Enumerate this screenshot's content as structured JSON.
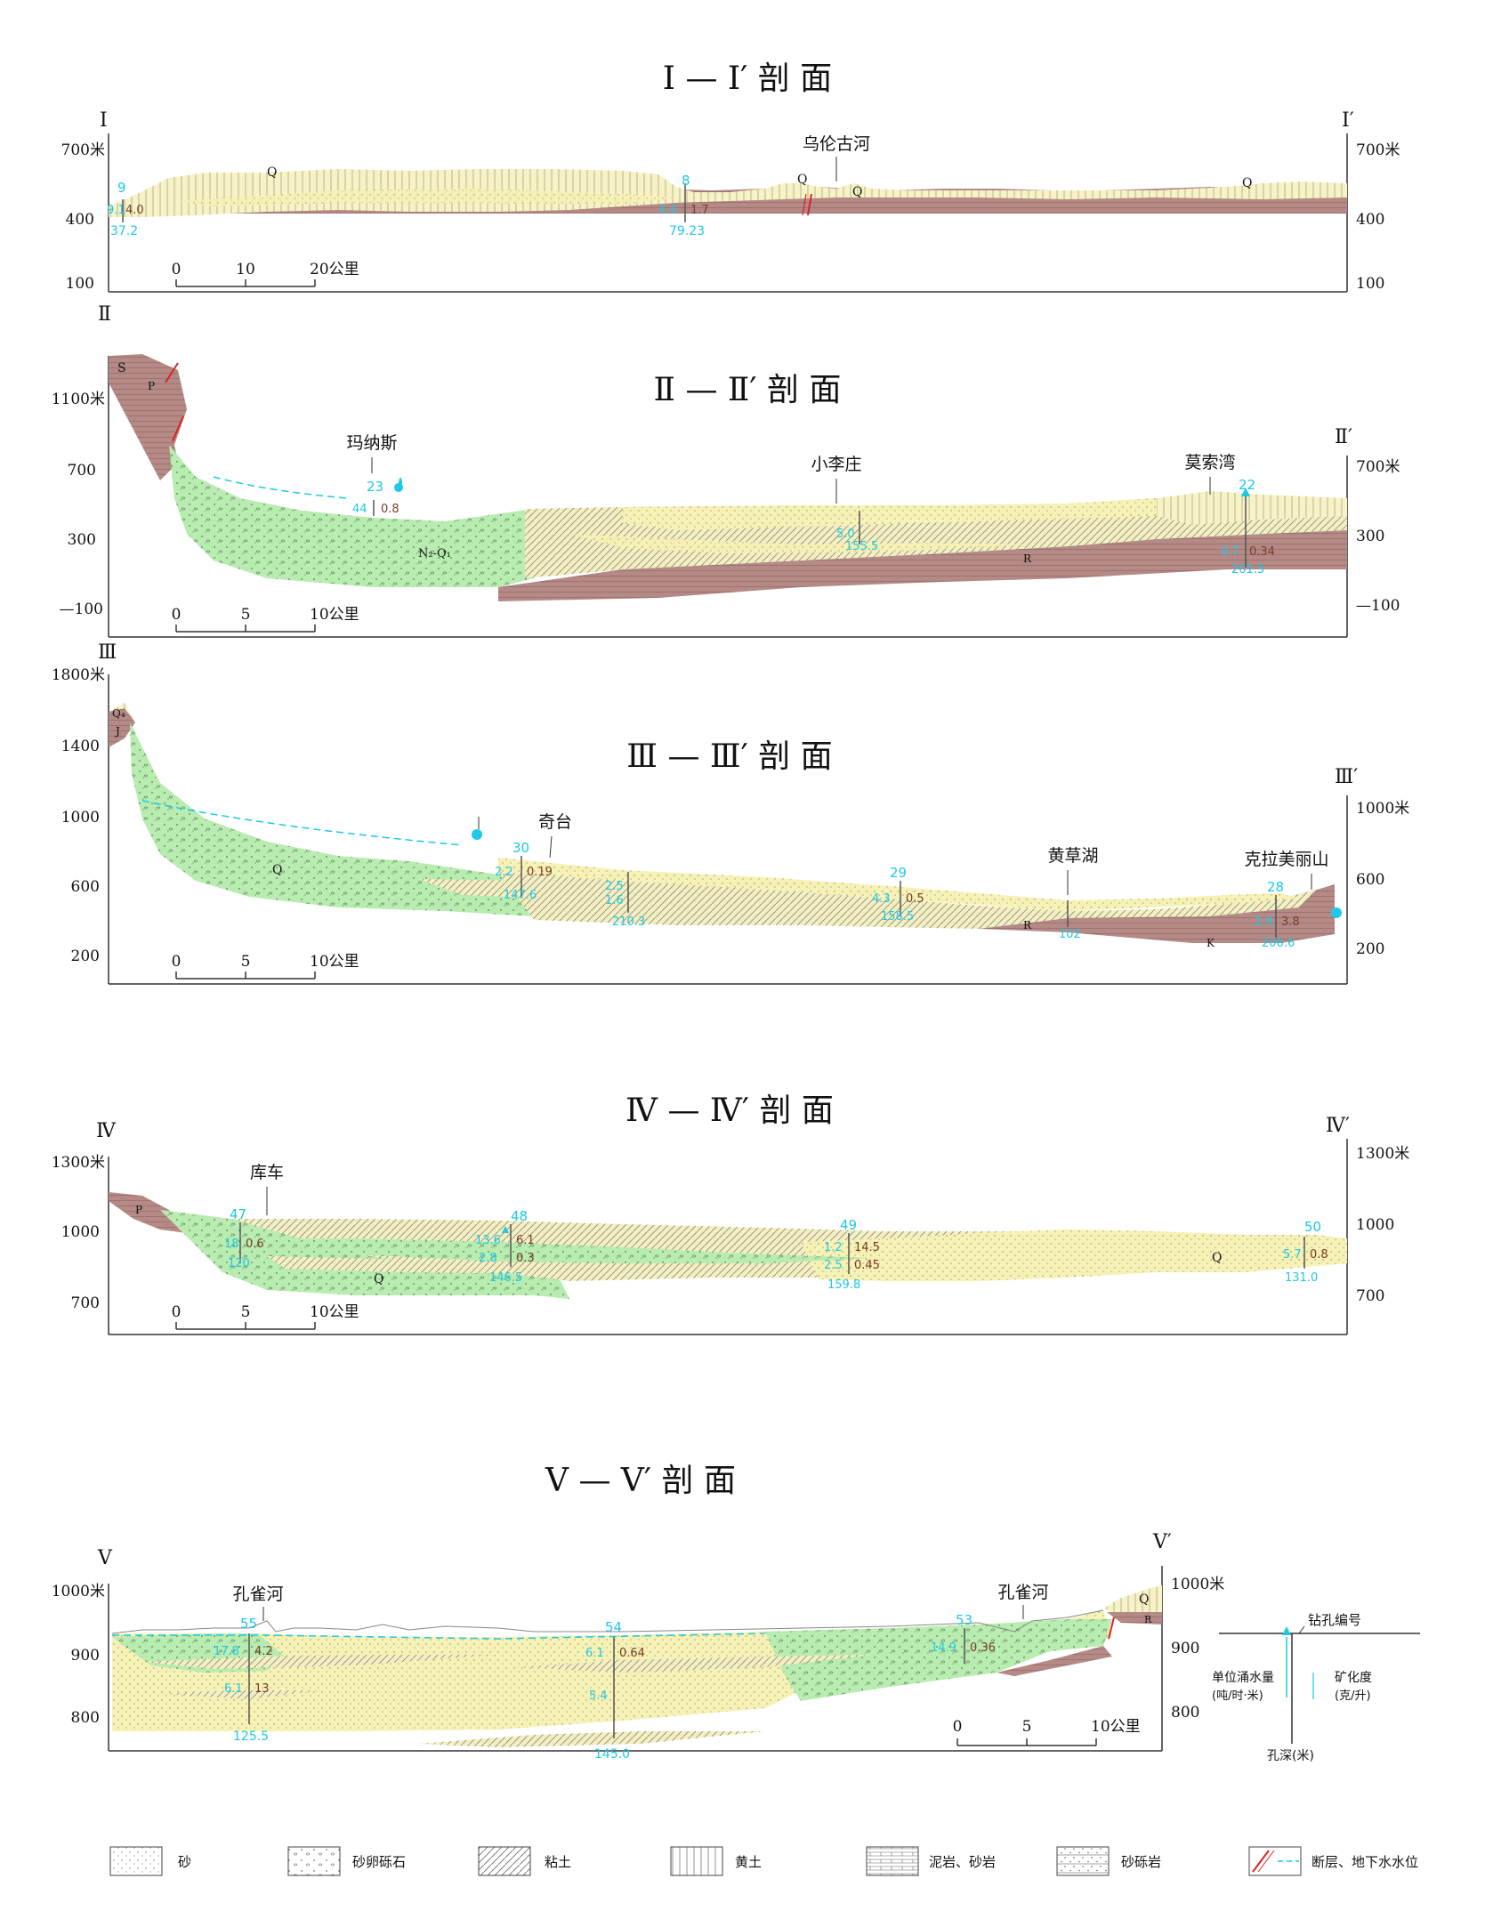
{
  "colors": {
    "sand": "#f6f1b4",
    "gravel": "#b8ecb0",
    "clay_rock": "#b58a86",
    "loess": "#f7f3c6",
    "water_number": "#1ec8e6",
    "salinity": "#7a3a28"
  },
  "sections": [
    {
      "title": "Ⅰ — Ⅰ′ 剖 面",
      "left_mark": "Ⅰ",
      "right_mark": "Ⅰ′",
      "left_axis": [
        "700米",
        "400",
        "100"
      ],
      "right_axis": [
        "700米",
        "400",
        "100"
      ],
      "scale": [
        "0",
        "10",
        "20公里"
      ],
      "places": [
        "乌伦古河"
      ],
      "layer_labels": [
        "Q",
        "Q",
        "Q",
        "Q"
      ],
      "wells": [
        {
          "id": "9",
          "yield": "9.1",
          "salinity": "4.0",
          "depth": "37.2"
        },
        {
          "id": "8",
          "yield": "4.4",
          "salinity": "1.7",
          "depth": "79.23"
        }
      ]
    },
    {
      "title": "Ⅱ — Ⅱ′ 剖 面",
      "left_mark": "Ⅱ",
      "right_mark": "Ⅱ′",
      "left_axis": [
        "1100米",
        "700",
        "300",
        "—100"
      ],
      "right_axis": [
        "700米",
        "300",
        "—100"
      ],
      "scale": [
        "0",
        "5",
        "10公里"
      ],
      "places": [
        "玛纳斯",
        "小李庄",
        "莫索湾"
      ],
      "layer_labels": [
        "S",
        "P",
        "N₂-Q₁",
        "R"
      ],
      "wells": [
        {
          "id": "23",
          "yield": "44",
          "salinity": "0.8",
          "depth": ""
        },
        {
          "id": "",
          "yield": "5.0",
          "salinity": "",
          "depth": "155.5"
        },
        {
          "id": "22",
          "yield": "0.7",
          "salinity": "0.34",
          "depth": "201.5"
        }
      ]
    },
    {
      "title": "Ⅲ — Ⅲ′ 剖 面",
      "left_mark": "Ⅲ",
      "right_mark": "Ⅲ′",
      "left_axis": [
        "1800米",
        "1400",
        "1000",
        "600",
        "200"
      ],
      "right_axis": [
        "1000米",
        "600",
        "200"
      ],
      "scale": [
        "0",
        "5",
        "10公里"
      ],
      "places": [
        "奇台",
        "黄草湖",
        "克拉美丽山"
      ],
      "layer_labels": [
        "Q₄",
        "J",
        "Q",
        "R",
        "K"
      ],
      "wells": [
        {
          "id": "30",
          "yield": "2.2",
          "salinity": "0.19",
          "depth": "147.6"
        },
        {
          "id": "",
          "yield": "2.5",
          "salinity": "1.6",
          "depth": "210.3"
        },
        {
          "id": "29",
          "yield": "4.3",
          "salinity": "0.5",
          "depth": "158.5"
        },
        {
          "id": "",
          "yield": "",
          "salinity": "",
          "depth": "102"
        },
        {
          "id": "28",
          "yield": "2.9",
          "salinity": "3.8",
          "depth": "206.6"
        }
      ]
    },
    {
      "title": "Ⅳ — Ⅳ′ 剖 面",
      "left_mark": "Ⅳ",
      "right_mark": "Ⅳ′",
      "left_axis": [
        "1300米",
        "1000",
        "700"
      ],
      "right_axis": [
        "1300米",
        "1000",
        "700"
      ],
      "scale": [
        "0",
        "5",
        "10公里"
      ],
      "places": [
        "库车"
      ],
      "layer_labels": [
        "P",
        "Q",
        "Q"
      ],
      "wells": [
        {
          "id": "47",
          "yield": "18",
          "salinity": "0.6",
          "depth": "120"
        },
        {
          "id": "48",
          "yield": "13.6",
          "salinity": "6.1",
          "depth": "146.5"
        },
        {
          "id": "",
          "yield": "2.8",
          "salinity": "0.3",
          "depth": ""
        },
        {
          "id": "49",
          "yield": "1.2",
          "salinity": "14.5",
          "depth": "159.8"
        },
        {
          "id": "",
          "yield": "2.5",
          "salinity": "0.45",
          "depth": ""
        },
        {
          "id": "50",
          "yield": "5.7",
          "salinity": "0.8",
          "depth": "131.0"
        }
      ]
    },
    {
      "title": "Ⅴ — Ⅴ′ 剖 面",
      "left_mark": "Ⅴ",
      "right_mark": "Ⅴ′",
      "left_axis": [
        "1000米",
        "900",
        "800"
      ],
      "right_axis": [
        "1000米",
        "900",
        "800"
      ],
      "scale": [
        "0",
        "5",
        "10公里"
      ],
      "places": [
        "孔雀河",
        "孔雀河"
      ],
      "layer_labels": [
        "Q",
        "R"
      ],
      "wells": [
        {
          "id": "55",
          "yield": "17.8",
          "salinity": "4.2",
          "depth": "125.5"
        },
        {
          "id": "",
          "yield": "6.1",
          "salinity": "13",
          "depth": ""
        },
        {
          "id": "54",
          "yield": "6.1",
          "salinity": "0.64",
          "depth": "145.0"
        },
        {
          "id": "",
          "yield": "5.4",
          "salinity": "",
          "depth": ""
        },
        {
          "id": "53",
          "yield": "14.9",
          "salinity": "0.36",
          "depth": ""
        }
      ]
    }
  ],
  "well_key": {
    "id_label": "钻孔编号",
    "yield_label": "单位涌水量",
    "yield_unit": "(吨/时·米)",
    "salinity_label": "矿化度",
    "salinity_unit": "(克/升)",
    "depth_label": "孔深(米)"
  },
  "legend": [
    {
      "label": "砂",
      "pattern": "sand"
    },
    {
      "label": "砂卵砾石",
      "pattern": "gravel"
    },
    {
      "label": "粘土",
      "pattern": "clay"
    },
    {
      "label": "黄土",
      "pattern": "loess"
    },
    {
      "label": "泥岩、砂岩",
      "pattern": "mudstone"
    },
    {
      "label": "砂砾岩",
      "pattern": "conglomerate"
    },
    {
      "label": "断层、地下水水位",
      "pattern": "fault"
    }
  ]
}
